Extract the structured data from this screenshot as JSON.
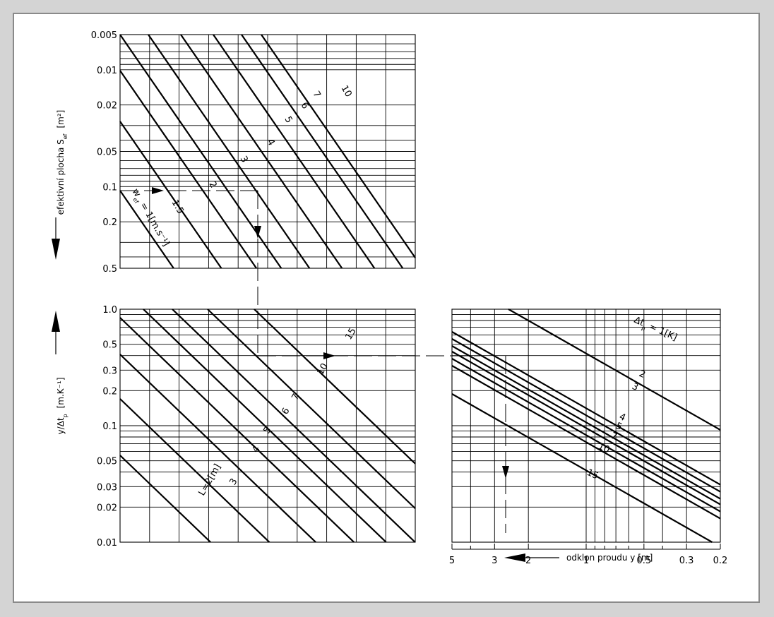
{
  "colors": {
    "background": "#d4d4d4",
    "panel": "#ffffff",
    "border": "#8a8a8a",
    "ink": "#000000"
  },
  "chart_data": [
    {
      "type": "line",
      "title": "",
      "scale": "log-log",
      "xlabel": "",
      "ylabel": "efektivní plocha S",
      "ylabel_sub": "ef",
      "ylabel_unit": "[m²]",
      "ylim": [
        0.005,
        0.5
      ],
      "y_inverted": true,
      "yticks": [
        "0.005",
        "0.01",
        "0.02",
        "0.05",
        "0.1",
        "0.2",
        "0.5"
      ],
      "series": [
        {
          "name": "1",
          "label_text": "w",
          "label_sub": "ef",
          "label_tail": " = 1[m.s⁻¹]"
        },
        {
          "name": "1.5"
        },
        {
          "name": "2"
        },
        {
          "name": "3"
        },
        {
          "name": "4"
        },
        {
          "name": "5"
        },
        {
          "name": "6"
        },
        {
          "name": "7"
        },
        {
          "name": "10"
        }
      ]
    },
    {
      "type": "line",
      "title": "",
      "scale": "log-log",
      "xlabel": "",
      "ylabel": "y/Δt",
      "ylabel_sub": "p",
      "ylabel_unit": "[m.K⁻¹]",
      "ylim": [
        0.01,
        1.0
      ],
      "yticks": [
        "0.01",
        "0.02",
        "0.03",
        "0.05",
        "0.1",
        "0.2",
        "0.3",
        "0.5",
        "1.0"
      ],
      "series": [
        {
          "name": "L=2[m]"
        },
        {
          "name": "3"
        },
        {
          "name": "4"
        },
        {
          "name": "5"
        },
        {
          "name": "6"
        },
        {
          "name": "7"
        },
        {
          "name": "10"
        },
        {
          "name": "15"
        }
      ]
    },
    {
      "type": "line",
      "title": "",
      "scale": "log-log",
      "xlabel": "odklon proudu y [m]",
      "xlim": [
        5,
        0.2
      ],
      "x_inverted": true,
      "xticks": [
        "5",
        "3",
        "2",
        "1",
        "0.5",
        "0.3",
        "0.2"
      ],
      "ylim": [
        0.01,
        1.0
      ],
      "series": [
        {
          "name": "1",
          "label_text": "Δt",
          "label_sub": "p",
          "label_tail": " = 1[K]"
        },
        {
          "name": "2"
        },
        {
          "name": "3"
        },
        {
          "name": "4"
        },
        {
          "name": "5"
        },
        {
          "name": "7"
        },
        {
          "name": "10"
        },
        {
          "name": "15"
        }
      ]
    }
  ]
}
